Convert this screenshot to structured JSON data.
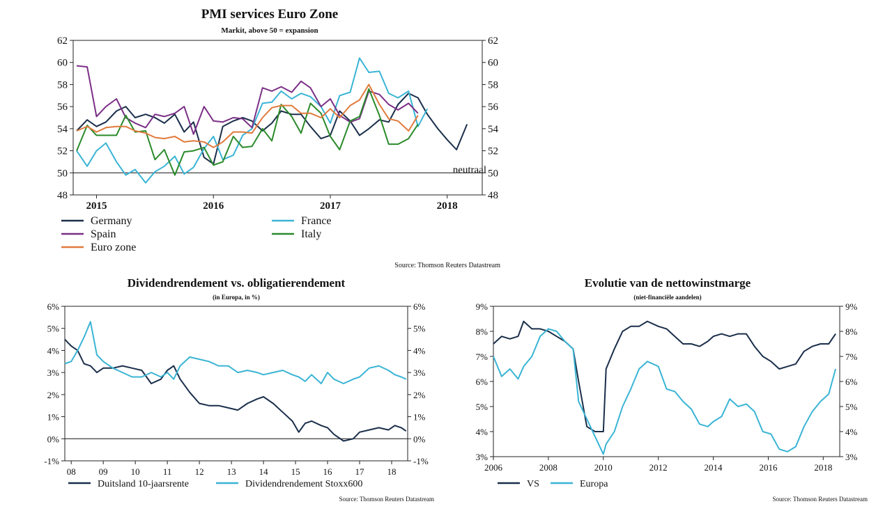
{
  "chart_data": [
    {
      "type": "line",
      "title": "PMI services Euro Zone",
      "subtitle": "Markit, above 50 = expansion",
      "ylim": [
        48,
        62
      ],
      "y_ticks": [
        "48",
        "50",
        "52",
        "54",
        "56",
        "58",
        "60",
        "62"
      ],
      "xlim": [
        2014.8,
        2018.3
      ],
      "x_ticks": [
        {
          "label": "2015",
          "value": 2015.0
        },
        {
          "label": "2016",
          "value": 2016.0
        },
        {
          "label": "2017",
          "value": 2017.0
        },
        {
          "label": "2018",
          "value": 2018.0
        }
      ],
      "reference_line": {
        "value": 50,
        "label": "neutraal"
      },
      "source": "Source: Thomson Reuters Datastream",
      "grid": false,
      "legend": "bottom",
      "series": [
        {
          "name": "Germany",
          "color": "#1a2e4a",
          "x": [
            2014.83,
            2014.92,
            2015.0,
            2015.08,
            2015.17,
            2015.25,
            2015.33,
            2015.42,
            2015.5,
            2015.58,
            2015.67,
            2015.75,
            2015.83,
            2015.92,
            2016.0,
            2016.08,
            2016.17,
            2016.25,
            2016.33,
            2016.42,
            2016.5,
            2016.58,
            2016.67,
            2016.75,
            2016.83,
            2016.92,
            2017.0,
            2017.08,
            2017.17,
            2017.25,
            2017.33,
            2017.42,
            2017.5,
            2017.58,
            2017.67,
            2017.75,
            2017.83,
            2017.92,
            2018.0,
            2018.08,
            2018.17,
            2018.25
          ],
          "values": [
            53.8,
            54.8,
            54.2,
            54.6,
            55.6,
            56.0,
            55.0,
            55.3,
            55.0,
            54.5,
            55.3,
            53.7,
            54.6,
            51.4,
            50.8,
            54.2,
            54.7,
            55.0,
            54.7,
            53.8,
            54.5,
            55.6,
            55.3,
            55.3,
            54.2,
            53.1,
            53.4,
            55.6,
            54.7,
            53.4,
            54.0,
            54.8,
            54.6,
            56.2,
            57.2,
            56.8,
            55.3,
            54.0,
            53.0,
            52.1,
            54.4,
            null
          ]
        },
        {
          "name": "France",
          "color": "#3ab4d4",
          "x": [
            2014.83,
            2014.92,
            2015.0,
            2015.08,
            2015.17,
            2015.25,
            2015.33,
            2015.42,
            2015.5,
            2015.58,
            2015.67,
            2015.75,
            2015.83,
            2015.92,
            2016.0,
            2016.08,
            2016.17,
            2016.25,
            2016.33,
            2016.42,
            2016.5,
            2016.58,
            2016.67,
            2016.75,
            2016.83,
            2016.92,
            2017.0,
            2017.08,
            2017.17,
            2017.25,
            2017.33,
            2017.42,
            2017.5,
            2017.58,
            2017.67,
            2017.75,
            2017.83,
            2017.92,
            2018.0,
            2018.08,
            2018.17,
            2018.25
          ],
          "values": [
            52.0,
            50.6,
            52.0,
            52.7,
            51.0,
            49.8,
            50.3,
            49.1,
            50.1,
            50.6,
            51.5,
            49.9,
            50.5,
            52.2,
            53.3,
            51.2,
            51.6,
            53.4,
            54.0,
            56.3,
            56.4,
            57.4,
            56.7,
            57.2,
            56.9,
            56.0,
            54.5,
            57.0,
            57.3,
            60.4,
            59.1,
            59.2,
            57.2,
            56.8,
            57.4,
            54.2,
            55.8,
            null,
            null,
            null,
            null,
            null
          ]
        },
        {
          "name": "Spain",
          "color": "#7b2f86",
          "x": [
            2014.83,
            2014.92,
            2015.0,
            2015.08,
            2015.17,
            2015.25,
            2015.33,
            2015.42,
            2015.5,
            2015.58,
            2015.67,
            2015.75,
            2015.83,
            2015.92,
            2016.0,
            2016.08,
            2016.17,
            2016.25,
            2016.33,
            2016.42,
            2016.5,
            2016.58,
            2016.67,
            2016.75,
            2016.83,
            2016.92,
            2017.0,
            2017.08,
            2017.17,
            2017.25,
            2017.33,
            2017.42,
            2017.5,
            2017.58,
            2017.67,
            2017.75,
            2017.83,
            2017.92,
            2018.0,
            2018.08,
            2018.17,
            2018.25
          ],
          "values": [
            59.7,
            59.6,
            55.1,
            56.0,
            56.7,
            55.0,
            54.5,
            54.1,
            55.3,
            55.1,
            55.4,
            56.0,
            53.5,
            56.0,
            54.7,
            54.6,
            55.0,
            54.9,
            54.1,
            57.7,
            57.4,
            57.8,
            57.3,
            58.3,
            57.7,
            56.0,
            56.7,
            55.2,
            54.6,
            54.9,
            57.4,
            57.1,
            56.2,
            55.7,
            56.3,
            55.4,
            null,
            null,
            null,
            null,
            null,
            null
          ]
        },
        {
          "name": "Italy",
          "color": "#2a8a2a",
          "x": [
            2014.83,
            2014.92,
            2015.0,
            2015.08,
            2015.17,
            2015.25,
            2015.33,
            2015.42,
            2015.5,
            2015.58,
            2015.67,
            2015.75,
            2015.83,
            2015.92,
            2016.0,
            2016.08,
            2016.17,
            2016.25,
            2016.33,
            2016.42,
            2016.5,
            2016.58,
            2016.67,
            2016.75,
            2016.83,
            2016.92,
            2017.0,
            2017.08,
            2017.17,
            2017.25,
            2017.33,
            2017.42,
            2017.5,
            2017.58,
            2017.67,
            2017.75,
            2017.83,
            2017.92,
            2018.0,
            2018.08,
            2018.17,
            2018.25
          ],
          "values": [
            52.0,
            54.3,
            53.4,
            53.4,
            53.4,
            55.2,
            53.7,
            53.8,
            51.2,
            52.1,
            49.8,
            51.9,
            52.0,
            52.3,
            50.7,
            51.0,
            53.3,
            52.3,
            52.4,
            54.0,
            52.9,
            56.2,
            55.1,
            53.6,
            56.3,
            55.4,
            53.3,
            52.1,
            54.7,
            55.1,
            57.6,
            55.2,
            52.6,
            52.6,
            53.1,
            54.4,
            null,
            null,
            null,
            null,
            null,
            null
          ]
        },
        {
          "name": "Euro zone",
          "color": "#e07a3c",
          "x": [
            2014.83,
            2014.92,
            2015.0,
            2015.08,
            2015.17,
            2015.25,
            2015.33,
            2015.42,
            2015.5,
            2015.58,
            2015.67,
            2015.75,
            2015.83,
            2015.92,
            2016.0,
            2016.08,
            2016.17,
            2016.25,
            2016.33,
            2016.42,
            2016.5,
            2016.58,
            2016.67,
            2016.75,
            2016.83,
            2016.92,
            2017.0,
            2017.08,
            2017.17,
            2017.25,
            2017.33,
            2017.42,
            2017.5,
            2017.58,
            2017.67,
            2017.75,
            2017.83,
            2017.92,
            2018.0,
            2018.08,
            2018.17,
            2018.25
          ],
          "values": [
            53.8,
            54.2,
            53.7,
            54.1,
            54.2,
            54.2,
            53.8,
            53.6,
            53.2,
            53.1,
            53.3,
            52.8,
            52.9,
            52.8,
            52.3,
            52.8,
            53.7,
            53.7,
            53.6,
            55.0,
            55.9,
            56.1,
            56.1,
            55.4,
            55.4,
            55.0,
            55.8,
            55.0,
            56.1,
            56.6,
            58.0,
            56.2,
            54.9,
            54.7,
            53.8,
            55.2,
            null,
            null,
            null,
            null,
            null,
            null
          ]
        }
      ]
    },
    {
      "type": "line",
      "title": "Dividendrendement vs. obligatierendement",
      "subtitle": "(in Europa, in %)",
      "ylim": [
        -1,
        6
      ],
      "y_ticks": [
        "-1%",
        "0%",
        "1%",
        "2%",
        "3%",
        "4%",
        "5%",
        "6%"
      ],
      "xlim": [
        2007.8,
        2018.5
      ],
      "x_ticks": [
        {
          "label": "08",
          "value": 2008.0
        },
        {
          "label": "09",
          "value": 2009.0
        },
        {
          "label": "10",
          "value": 2010.0
        },
        {
          "label": "11",
          "value": 2011.0
        },
        {
          "label": "12",
          "value": 2012.0
        },
        {
          "label": "13",
          "value": 2013.0
        },
        {
          "label": "14",
          "value": 2014.0
        },
        {
          "label": "15",
          "value": 2015.0
        },
        {
          "label": "16",
          "value": 2016.0
        },
        {
          "label": "17",
          "value": 2017.0
        },
        {
          "label": "18",
          "value": 2018.0
        }
      ],
      "reference_line": {
        "value": 0,
        "label": ""
      },
      "source": "Source: Thomson Reuters Datastream",
      "grid": false,
      "legend": "bottom",
      "series": [
        {
          "name": "Duitsland 10-jaarsrente",
          "color": "#1a2e4a",
          "x": [
            2007.8,
            2008.0,
            2008.2,
            2008.4,
            2008.6,
            2008.8,
            2009.0,
            2009.3,
            2009.6,
            2009.9,
            2010.2,
            2010.5,
            2010.8,
            2011.0,
            2011.2,
            2011.4,
            2011.7,
            2012.0,
            2012.3,
            2012.6,
            2012.9,
            2013.2,
            2013.5,
            2013.8,
            2014.0,
            2014.3,
            2014.6,
            2014.9,
            2015.1,
            2015.3,
            2015.5,
            2015.8,
            2016.0,
            2016.2,
            2016.5,
            2016.8,
            2017.0,
            2017.3,
            2017.6,
            2017.9,
            2018.1,
            2018.3,
            2018.45
          ],
          "values": [
            4.5,
            4.2,
            4.0,
            3.4,
            3.3,
            3.0,
            3.2,
            3.2,
            3.3,
            3.2,
            3.1,
            2.5,
            2.7,
            3.1,
            3.3,
            2.7,
            2.1,
            1.6,
            1.5,
            1.5,
            1.4,
            1.3,
            1.6,
            1.8,
            1.9,
            1.6,
            1.2,
            0.8,
            0.3,
            0.7,
            0.8,
            0.6,
            0.5,
            0.2,
            -0.1,
            0.0,
            0.3,
            0.4,
            0.5,
            0.4,
            0.6,
            0.5,
            0.35
          ]
        },
        {
          "name": "Dividendrendement Stoxx600",
          "color": "#3ab4d4",
          "x": [
            2007.8,
            2008.0,
            2008.2,
            2008.4,
            2008.6,
            2008.8,
            2009.0,
            2009.3,
            2009.6,
            2009.9,
            2010.2,
            2010.5,
            2010.8,
            2011.0,
            2011.2,
            2011.4,
            2011.7,
            2012.0,
            2012.3,
            2012.6,
            2012.9,
            2013.2,
            2013.5,
            2013.8,
            2014.0,
            2014.3,
            2014.6,
            2014.9,
            2015.1,
            2015.3,
            2015.5,
            2015.8,
            2016.0,
            2016.2,
            2016.5,
            2016.8,
            2017.0,
            2017.3,
            2017.6,
            2017.9,
            2018.1,
            2018.3,
            2018.45
          ],
          "values": [
            3.4,
            3.5,
            4.0,
            4.6,
            5.3,
            3.8,
            3.5,
            3.2,
            3.0,
            2.8,
            2.8,
            3.0,
            2.8,
            3.0,
            2.7,
            3.3,
            3.7,
            3.6,
            3.5,
            3.3,
            3.3,
            3.0,
            3.1,
            3.0,
            2.9,
            3.0,
            3.1,
            2.9,
            2.8,
            2.6,
            2.9,
            2.5,
            3.0,
            2.7,
            2.5,
            2.7,
            2.8,
            3.2,
            3.3,
            3.1,
            2.9,
            2.8,
            2.7
          ]
        }
      ]
    },
    {
      "type": "line",
      "title": "Evolutie van de nettowinstmarge",
      "subtitle": "(niet-financiële aandelen)",
      "ylim": [
        3,
        9
      ],
      "y_ticks": [
        "3%",
        "4%",
        "5%",
        "6%",
        "7%",
        "8%",
        "9%"
      ],
      "xlim": [
        2006.0,
        2018.6
      ],
      "x_ticks": [
        {
          "label": "2006",
          "value": 2006.0
        },
        {
          "label": "2008",
          "value": 2008.0
        },
        {
          "label": "2010",
          "value": 2010.0
        },
        {
          "label": "2012",
          "value": 2012.0
        },
        {
          "label": "2014",
          "value": 2014.0
        },
        {
          "label": "2016",
          "value": 2016.0
        },
        {
          "label": "2018",
          "value": 2018.0
        }
      ],
      "source": "Source: Thomson Reuters Datastream",
      "grid": false,
      "legend": "bottom",
      "series": [
        {
          "name": "VS",
          "color": "#1a2e4a",
          "x": [
            2006.0,
            2006.3,
            2006.6,
            2006.9,
            2007.1,
            2007.4,
            2007.7,
            2008.0,
            2008.3,
            2008.6,
            2008.9,
            2009.1,
            2009.4,
            2009.7,
            2010.0,
            2010.1,
            2010.4,
            2010.7,
            2011.0,
            2011.3,
            2011.6,
            2012.0,
            2012.3,
            2012.6,
            2012.9,
            2013.2,
            2013.5,
            2013.8,
            2014.0,
            2014.3,
            2014.6,
            2014.9,
            2015.2,
            2015.5,
            2015.8,
            2016.1,
            2016.4,
            2016.7,
            2017.0,
            2017.3,
            2017.6,
            2017.9,
            2018.2,
            2018.45
          ],
          "values": [
            7.5,
            7.8,
            7.7,
            7.8,
            8.4,
            8.1,
            8.1,
            8.0,
            7.8,
            7.6,
            7.3,
            6.0,
            4.2,
            4.0,
            4.0,
            6.5,
            7.3,
            8.0,
            8.2,
            8.2,
            8.4,
            8.2,
            8.1,
            7.8,
            7.5,
            7.5,
            7.4,
            7.6,
            7.8,
            7.9,
            7.8,
            7.9,
            7.9,
            7.4,
            7.0,
            6.8,
            6.5,
            6.6,
            6.7,
            7.2,
            7.4,
            7.5,
            7.5,
            7.9
          ]
        },
        {
          "name": "Europa",
          "color": "#3ab4d4",
          "x": [
            2006.0,
            2006.3,
            2006.6,
            2006.9,
            2007.1,
            2007.4,
            2007.7,
            2008.0,
            2008.3,
            2008.6,
            2008.9,
            2009.1,
            2009.4,
            2009.7,
            2010.0,
            2010.1,
            2010.4,
            2010.7,
            2011.0,
            2011.3,
            2011.6,
            2012.0,
            2012.3,
            2012.6,
            2012.9,
            2013.2,
            2013.5,
            2013.8,
            2014.0,
            2014.3,
            2014.6,
            2014.9,
            2015.2,
            2015.5,
            2015.8,
            2016.1,
            2016.4,
            2016.7,
            2017.0,
            2017.3,
            2017.6,
            2017.9,
            2018.2,
            2018.45
          ],
          "values": [
            7.0,
            6.2,
            6.5,
            6.1,
            6.6,
            7.0,
            7.8,
            8.1,
            8.0,
            7.6,
            7.3,
            5.2,
            4.5,
            3.8,
            3.1,
            3.5,
            4.0,
            5.0,
            5.7,
            6.5,
            6.8,
            6.6,
            5.7,
            5.6,
            5.2,
            4.9,
            4.3,
            4.2,
            4.4,
            4.6,
            5.3,
            5.0,
            5.1,
            4.8,
            4.0,
            3.9,
            3.3,
            3.2,
            3.4,
            4.2,
            4.8,
            5.2,
            5.5,
            6.5
          ]
        }
      ]
    }
  ]
}
